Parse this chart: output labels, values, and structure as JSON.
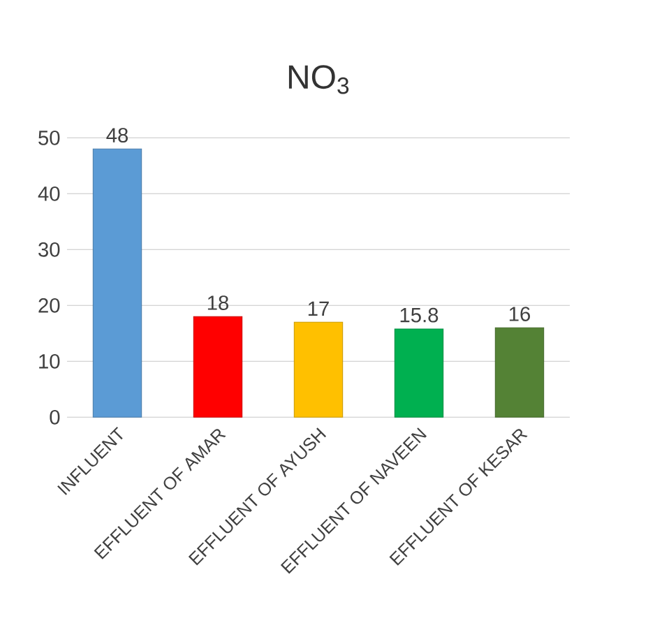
{
  "chart_data": {
    "type": "bar",
    "title": "NO$_{3}$",
    "categories": [
      "INFLUENT",
      "EFFLUENT OF AMAR",
      "EFFLUENT OF AYUSH",
      "EFFLUENT OF NAVEEN",
      "EFFLUENT OF KESAR"
    ],
    "values": [
      48,
      18,
      17,
      15.8,
      16
    ],
    "colors": [
      "#5b9bd5",
      "#ff0000",
      "#ffc000",
      "#00b050",
      "#548235"
    ],
    "ylim": [
      0,
      50
    ],
    "yticks": [
      0,
      10,
      20,
      30,
      40,
      50
    ],
    "grid": "y",
    "data_labels": true
  }
}
